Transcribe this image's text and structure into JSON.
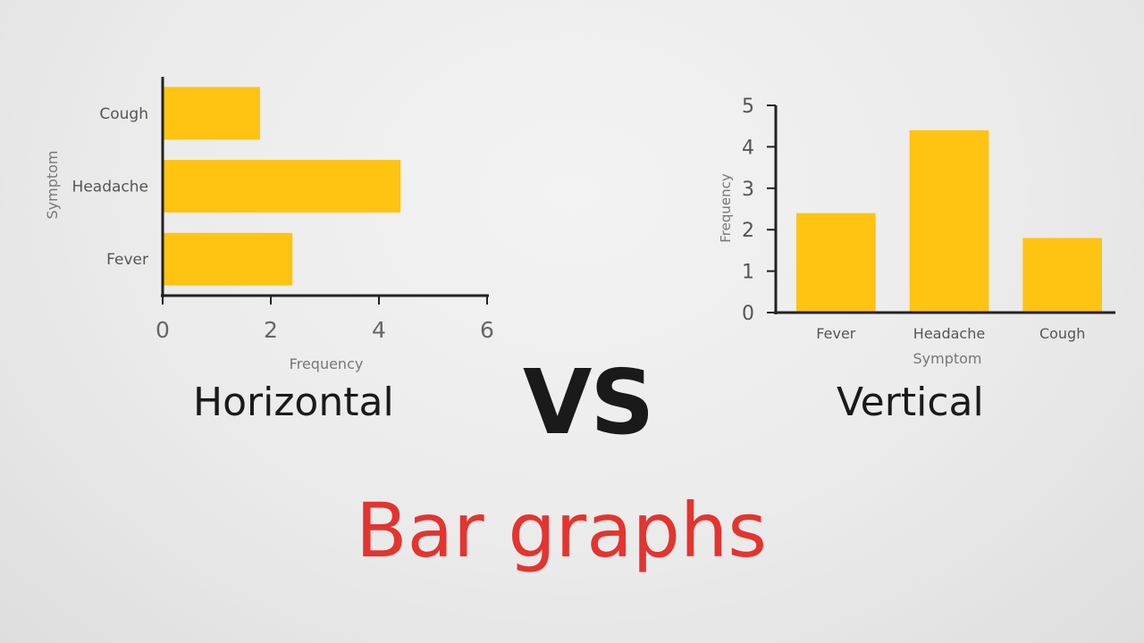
{
  "chart_data": [
    {
      "type": "bar",
      "orientation": "horizontal",
      "categories": [
        "Fever",
        "Headache",
        "Cough"
      ],
      "values": [
        2.4,
        4.4,
        1.8
      ],
      "xlabel": "Frequency",
      "ylabel": "Symptom",
      "xlim": [
        0,
        6
      ],
      "xticks": [
        "0",
        "2",
        "4",
        "6"
      ],
      "bar_color": "#FFC312",
      "grid": false
    },
    {
      "type": "bar",
      "orientation": "vertical",
      "categories": [
        "Fever",
        "Headache",
        "Cough"
      ],
      "values": [
        2.4,
        4.4,
        1.8
      ],
      "xlabel": "Symptom",
      "ylabel": "Frequency",
      "ylim": [
        0,
        5
      ],
      "yticks": [
        "0",
        "1",
        "2",
        "3",
        "4",
        "5"
      ],
      "bar_color": "#FFC312",
      "grid": false
    }
  ],
  "captions": {
    "horizontal": "Horizontal",
    "vs": "VS",
    "vertical": "Vertical",
    "title": "Bar graphs"
  },
  "colors": {
    "bar": "#FFC312",
    "title": "#E3342F",
    "text": "#1A1A1A",
    "axis": "#222222",
    "label": "#555555"
  }
}
